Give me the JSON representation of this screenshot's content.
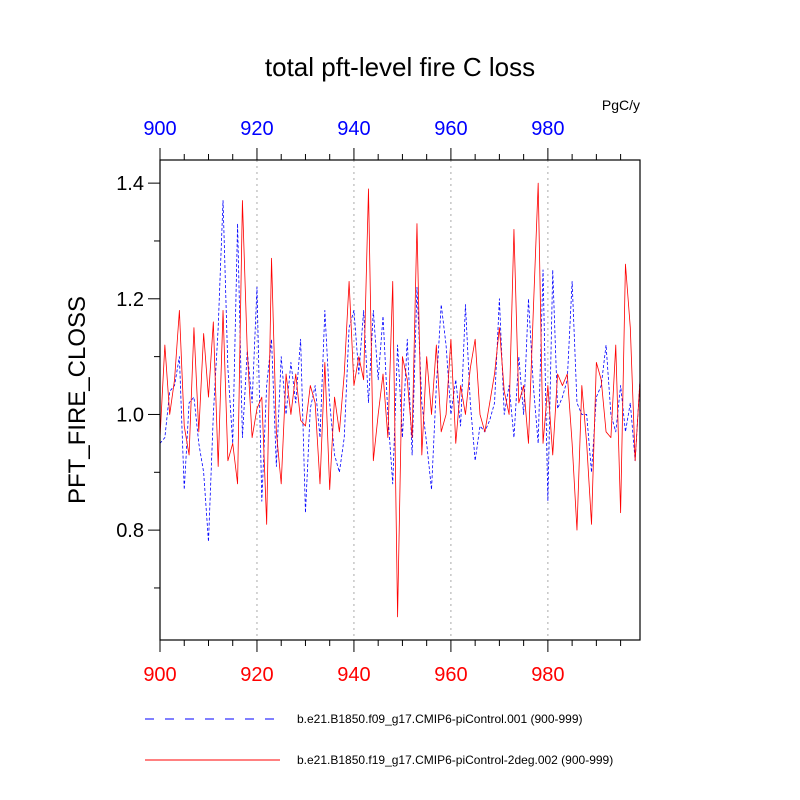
{
  "chart_data": {
    "type": "line",
    "title": "total pft-level fire C loss",
    "units": "PgC/y",
    "ylabel": "PFT_FIRE_CLOSS",
    "xlabel": "",
    "xlim": [
      900,
      999
    ],
    "ylim": [
      0.61,
      1.44
    ],
    "x_ticks": [
      "900",
      "920",
      "940",
      "960",
      "980"
    ],
    "y_ticks": [
      "0.8",
      "1.0",
      "1.2",
      "1.4"
    ],
    "grid": "dotted vertical lines at x ticks",
    "x_start": 900,
    "series": [
      {
        "name": "b.e21.B1850.f09_g17.CMIP6-piControl.001 (900-999)",
        "color": "#0000ff",
        "style": "dashed",
        "values": [
          0.95,
          0.96,
          1.04,
          1.05,
          1.1,
          0.87,
          1.02,
          1.03,
          0.95,
          0.9,
          0.78,
          1.0,
          1.15,
          1.37,
          1.08,
          0.95,
          1.33,
          0.96,
          1.11,
          1.02,
          1.22,
          0.85,
          1.05,
          1.13,
          0.91,
          1.1,
          1.0,
          1.09,
          1.02,
          1.13,
          0.83,
          1.01,
          1.05,
          0.96,
          1.18,
          1.02,
          0.93,
          0.9,
          0.96,
          1.15,
          1.18,
          1.07,
          1.18,
          1.02,
          1.18,
          1.06,
          1.17,
          1.0,
          0.88,
          1.12,
          0.96,
          1.13,
          0.93,
          1.22,
          1.02,
          0.95,
          0.87,
          1.05,
          1.19,
          1.12,
          1.0,
          1.06,
          0.98,
          1.19,
          1.02,
          0.92,
          0.98,
          0.97,
          0.99,
          1.02,
          1.2,
          1.0,
          1.05,
          0.96,
          1.1,
          1.0,
          1.2,
          1.05,
          0.95,
          1.25,
          0.85,
          1.25,
          1.01,
          1.03,
          1.06,
          1.23,
          1.02,
          1.0,
          1.0,
          0.9,
          1.03,
          1.05,
          1.12,
          1.0,
          0.97,
          1.05,
          0.97,
          1.02,
          0.92,
          1.06
        ]
      },
      {
        "name": "b.e21.B1850.f19_g17.CMIP6-piControl-2deg.002 (900-999)",
        "color": "#ff0000",
        "style": "solid",
        "values": [
          0.96,
          1.12,
          1.0,
          1.06,
          1.18,
          0.98,
          0.93,
          1.15,
          0.97,
          1.14,
          1.03,
          1.16,
          0.91,
          1.18,
          0.92,
          0.95,
          0.88,
          1.37,
          1.11,
          0.96,
          1.01,
          1.03,
          0.81,
          1.27,
          0.97,
          0.88,
          1.07,
          1.0,
          1.07,
          0.99,
          0.98,
          1.05,
          1.02,
          0.88,
          1.09,
          0.87,
          1.03,
          0.97,
          1.07,
          1.23,
          1.05,
          1.1,
          1.06,
          1.39,
          0.92,
          1.0,
          1.07,
          0.96,
          1.23,
          0.65,
          1.1,
          1.06,
          0.96,
          1.33,
          0.93,
          1.1,
          1.0,
          1.12,
          0.97,
          1.0,
          1.13,
          0.95,
          1.05,
          1.0,
          1.08,
          1.13,
          1.0,
          0.97,
          1.02,
          1.07,
          1.15,
          1.04,
          1.0,
          1.32,
          1.02,
          1.05,
          0.95,
          1.18,
          1.4,
          0.95,
          1.05,
          0.93,
          1.07,
          1.05,
          1.07,
          0.95,
          0.8,
          1.05,
          0.95,
          0.81,
          1.09,
          1.06,
          0.97,
          0.96,
          1.12,
          0.83,
          1.26,
          1.15,
          0.92,
          1.06
        ]
      }
    ]
  }
}
